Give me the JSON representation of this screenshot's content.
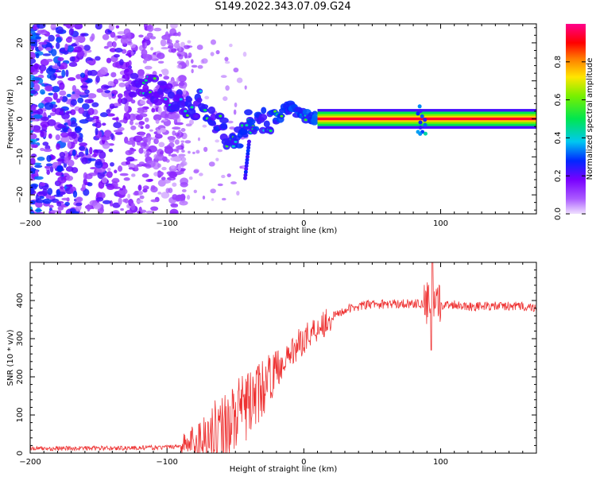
{
  "figure": {
    "title": "S149.2022.343.07.09.G24"
  },
  "chart_data": [
    {
      "type": "heatmap",
      "xlabel": "Height of straight line (km)",
      "ylabel": "Frequency (Hz)",
      "xlim": [
        -200,
        170
      ],
      "ylim": [
        -25,
        25
      ],
      "xticks": [
        -200,
        -100,
        0,
        100
      ],
      "yticks": [
        -20,
        -10,
        0,
        10,
        20
      ],
      "colorbar": {
        "label": "Normalized spectral amplitude",
        "range": [
          0,
          1
        ],
        "ticks": [
          0.0,
          0.2,
          0.4,
          0.6,
          0.8
        ],
        "colormap": "rainbow"
      },
      "ridge": {
        "x": [
          -125,
          -110,
          -100,
          -90,
          -80,
          -75,
          -70,
          -60,
          -55,
          -50,
          -45,
          -40,
          -35,
          -30,
          -25,
          -20,
          -15,
          -10,
          -5,
          0,
          5,
          10,
          170
        ],
        "y": [
          9,
          8,
          6,
          4,
          2,
          5,
          0,
          -2,
          -5,
          -7,
          -3,
          -1,
          -2,
          0,
          -1,
          0,
          2,
          3,
          2,
          1,
          0.5,
          0,
          0
        ]
      }
    },
    {
      "type": "line",
      "xlabel": "Height of straight line (km)",
      "ylabel": "SNR (10 * v/v)",
      "xlim": [
        -200,
        170
      ],
      "ylim": [
        0,
        500
      ],
      "xticks": [
        -200,
        -100,
        0,
        100
      ],
      "yticks": [
        0,
        100,
        200,
        300,
        400
      ],
      "series": [
        {
          "color": "#ee3333",
          "x": [
            -200,
            -180,
            -160,
            -140,
            -120,
            -100,
            -90,
            -80,
            -70,
            -60,
            -50,
            -40,
            -30,
            -20,
            -10,
            0,
            10,
            20,
            30,
            40,
            50,
            60,
            70,
            80,
            90,
            95,
            100,
            110,
            120,
            140,
            160,
            170
          ],
          "y": [
            12,
            12,
            13,
            13,
            14,
            15,
            20,
            30,
            45,
            70,
            95,
            130,
            170,
            220,
            260,
            300,
            330,
            355,
            375,
            385,
            390,
            390,
            392,
            392,
            390,
            370,
            388,
            390,
            385,
            385,
            385,
            380
          ]
        }
      ]
    }
  ]
}
